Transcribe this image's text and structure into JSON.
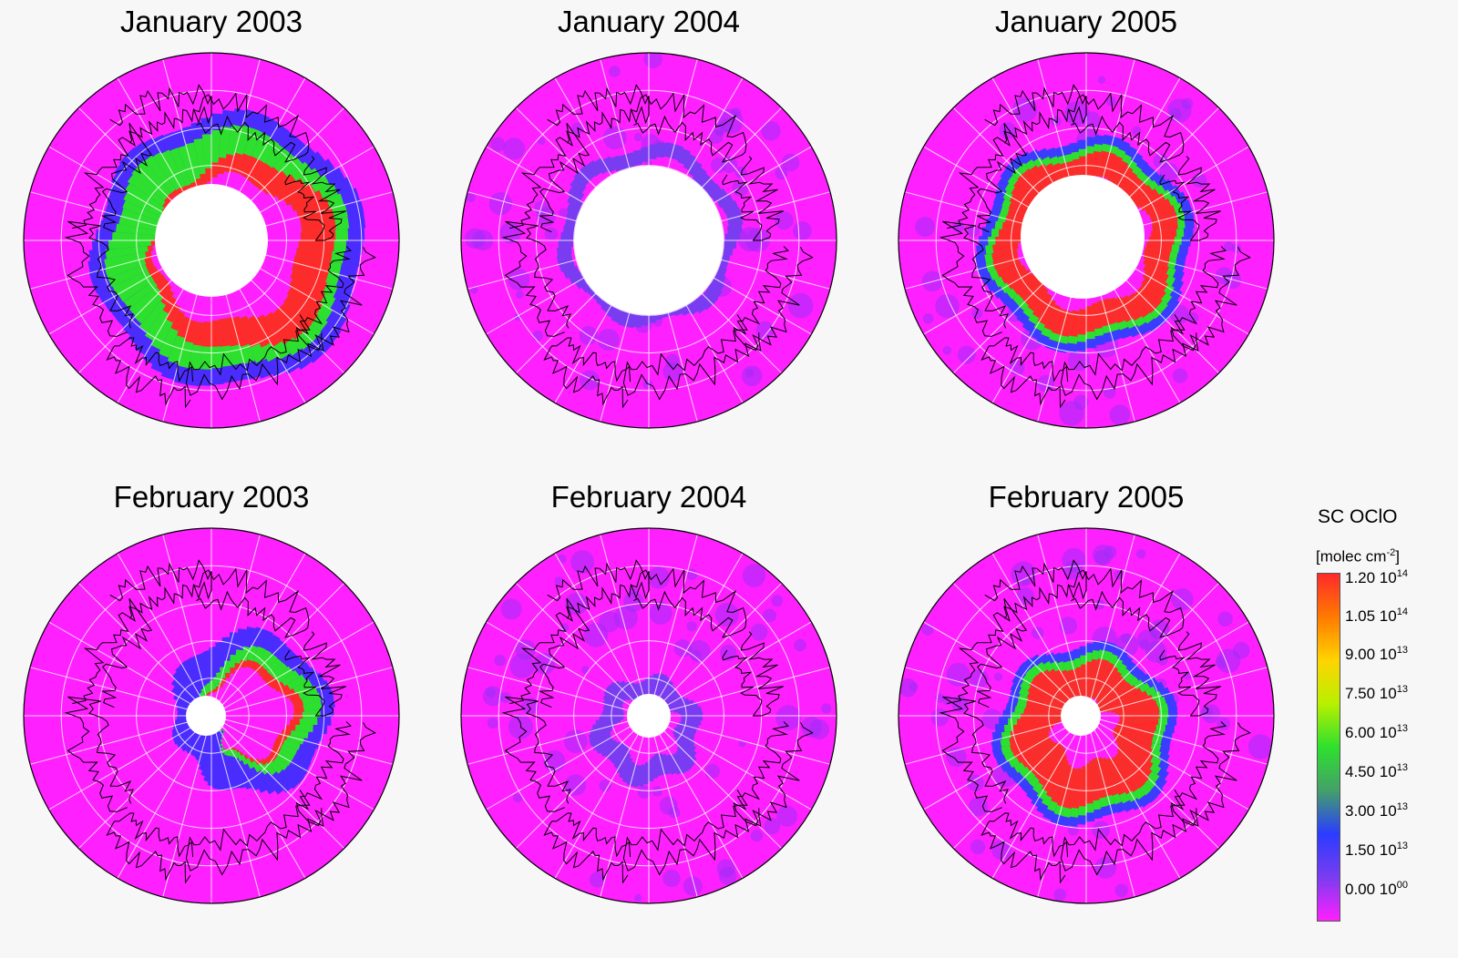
{
  "panels": [
    {
      "title": "January 2003",
      "pattern": "jan2003"
    },
    {
      "title": "January 2004",
      "pattern": "jan2004"
    },
    {
      "title": "January 2005",
      "pattern": "jan2005"
    },
    {
      "title": "February 2003",
      "pattern": "feb2003"
    },
    {
      "title": "February 2004",
      "pattern": "feb2004"
    },
    {
      "title": "February 2005",
      "pattern": "feb2005"
    }
  ],
  "legend": {
    "title": "SC OClO",
    "unit_prefix": "[molec cm",
    "unit_exp": "-2",
    "unit_suffix": "]",
    "ticks": [
      {
        "mant": "1.20 10",
        "exp": "14"
      },
      {
        "mant": "1.05 10",
        "exp": "14"
      },
      {
        "mant": "9.00 10",
        "exp": "13"
      },
      {
        "mant": "7.50 10",
        "exp": "13"
      },
      {
        "mant": "6.00 10",
        "exp": "13"
      },
      {
        "mant": "4.50 10",
        "exp": "13"
      },
      {
        "mant": "3.00 10",
        "exp": "13"
      },
      {
        "mant": "1.50 10",
        "exp": "13"
      },
      {
        "mant": "0.00 10",
        "exp": "00"
      }
    ],
    "colors": [
      "#ff2a2a",
      "#ff7a00",
      "#ffd400",
      "#b8f000",
      "#2ee02e",
      "#44a06a",
      "#2a3cff",
      "#7a3cf0",
      "#ff20ff"
    ]
  }
}
